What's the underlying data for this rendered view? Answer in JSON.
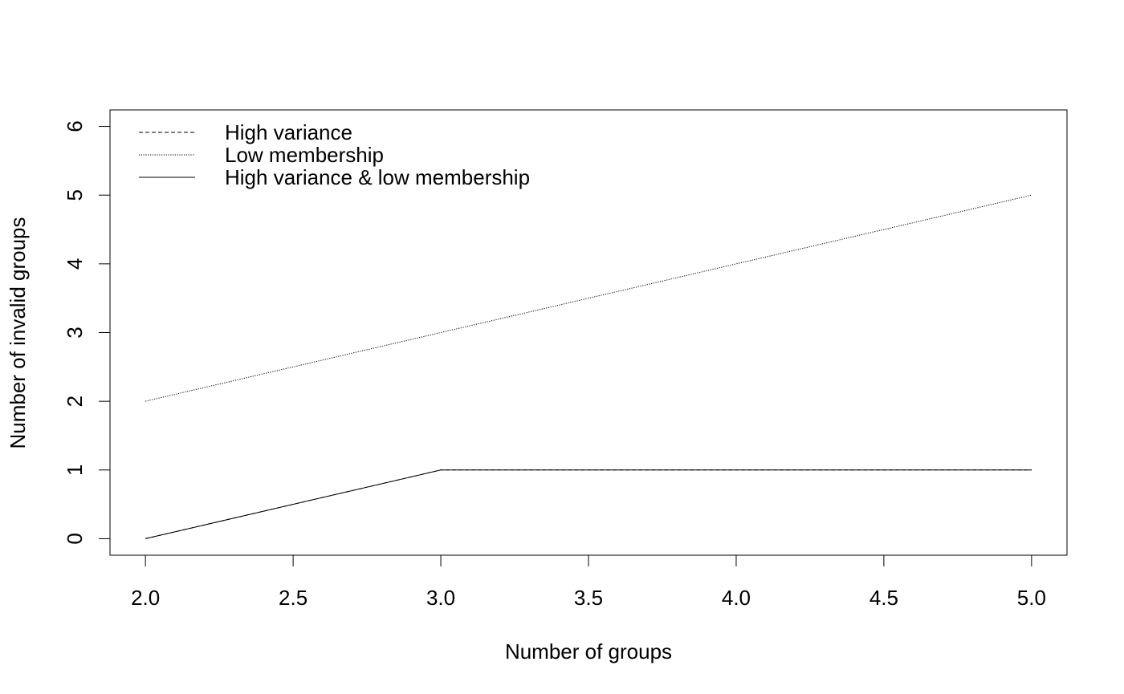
{
  "chart_data": {
    "type": "line",
    "title": "",
    "xlabel": "Number of groups",
    "ylabel": "Number of invalid groups",
    "xlim": [
      1.88,
      5.12
    ],
    "ylim": [
      -0.24,
      6.24
    ],
    "xticks": [
      2.0,
      2.5,
      3.0,
      3.5,
      4.0,
      4.5,
      5.0
    ],
    "xtick_labels": [
      "2.0",
      "2.5",
      "3.0",
      "3.5",
      "4.0",
      "4.5",
      "5.0"
    ],
    "yticks": [
      0,
      1,
      2,
      3,
      4,
      5,
      6
    ],
    "ytick_labels": [
      "0",
      "1",
      "2",
      "3",
      "4",
      "5",
      "6"
    ],
    "x": [
      2,
      3,
      4,
      5
    ],
    "grid": false,
    "legend_position": "top-left",
    "series": [
      {
        "name": "High variance",
        "values": [
          0,
          1,
          1,
          1
        ],
        "line_style": "dashed",
        "color": "#000000"
      },
      {
        "name": "Low membership",
        "values": [
          2,
          3,
          4,
          5
        ],
        "line_style": "dotted",
        "color": "#000000"
      },
      {
        "name": "High variance & low membership",
        "values": [
          0,
          1,
          1,
          1
        ],
        "line_style": "solid",
        "color": "#000000"
      }
    ]
  }
}
